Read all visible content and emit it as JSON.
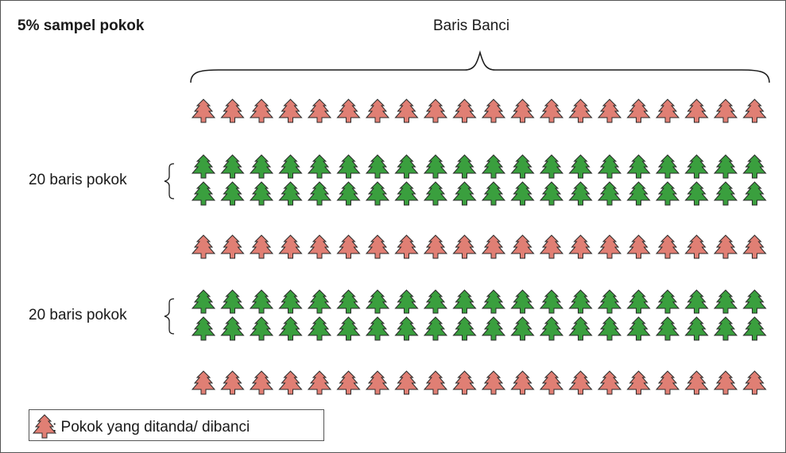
{
  "title": "5% sampel pokok",
  "header": "Baris Banci",
  "group_label_1": "20 baris pokok",
  "group_label_2": "20 baris pokok",
  "legend_text": ": Pokok yang ditanda/ dibanci",
  "colors": {
    "sampled": "#e07f74",
    "normal": "#3a9f3e",
    "outline": "#2a2a2a"
  },
  "rows": [
    {
      "kind": "sampled",
      "count": 20
    },
    {
      "kind": "normal",
      "count": 20
    },
    {
      "kind": "normal",
      "count": 20
    },
    {
      "kind": "sampled",
      "count": 20
    },
    {
      "kind": "normal",
      "count": 20
    },
    {
      "kind": "normal",
      "count": 20
    },
    {
      "kind": "sampled",
      "count": 20
    }
  ]
}
